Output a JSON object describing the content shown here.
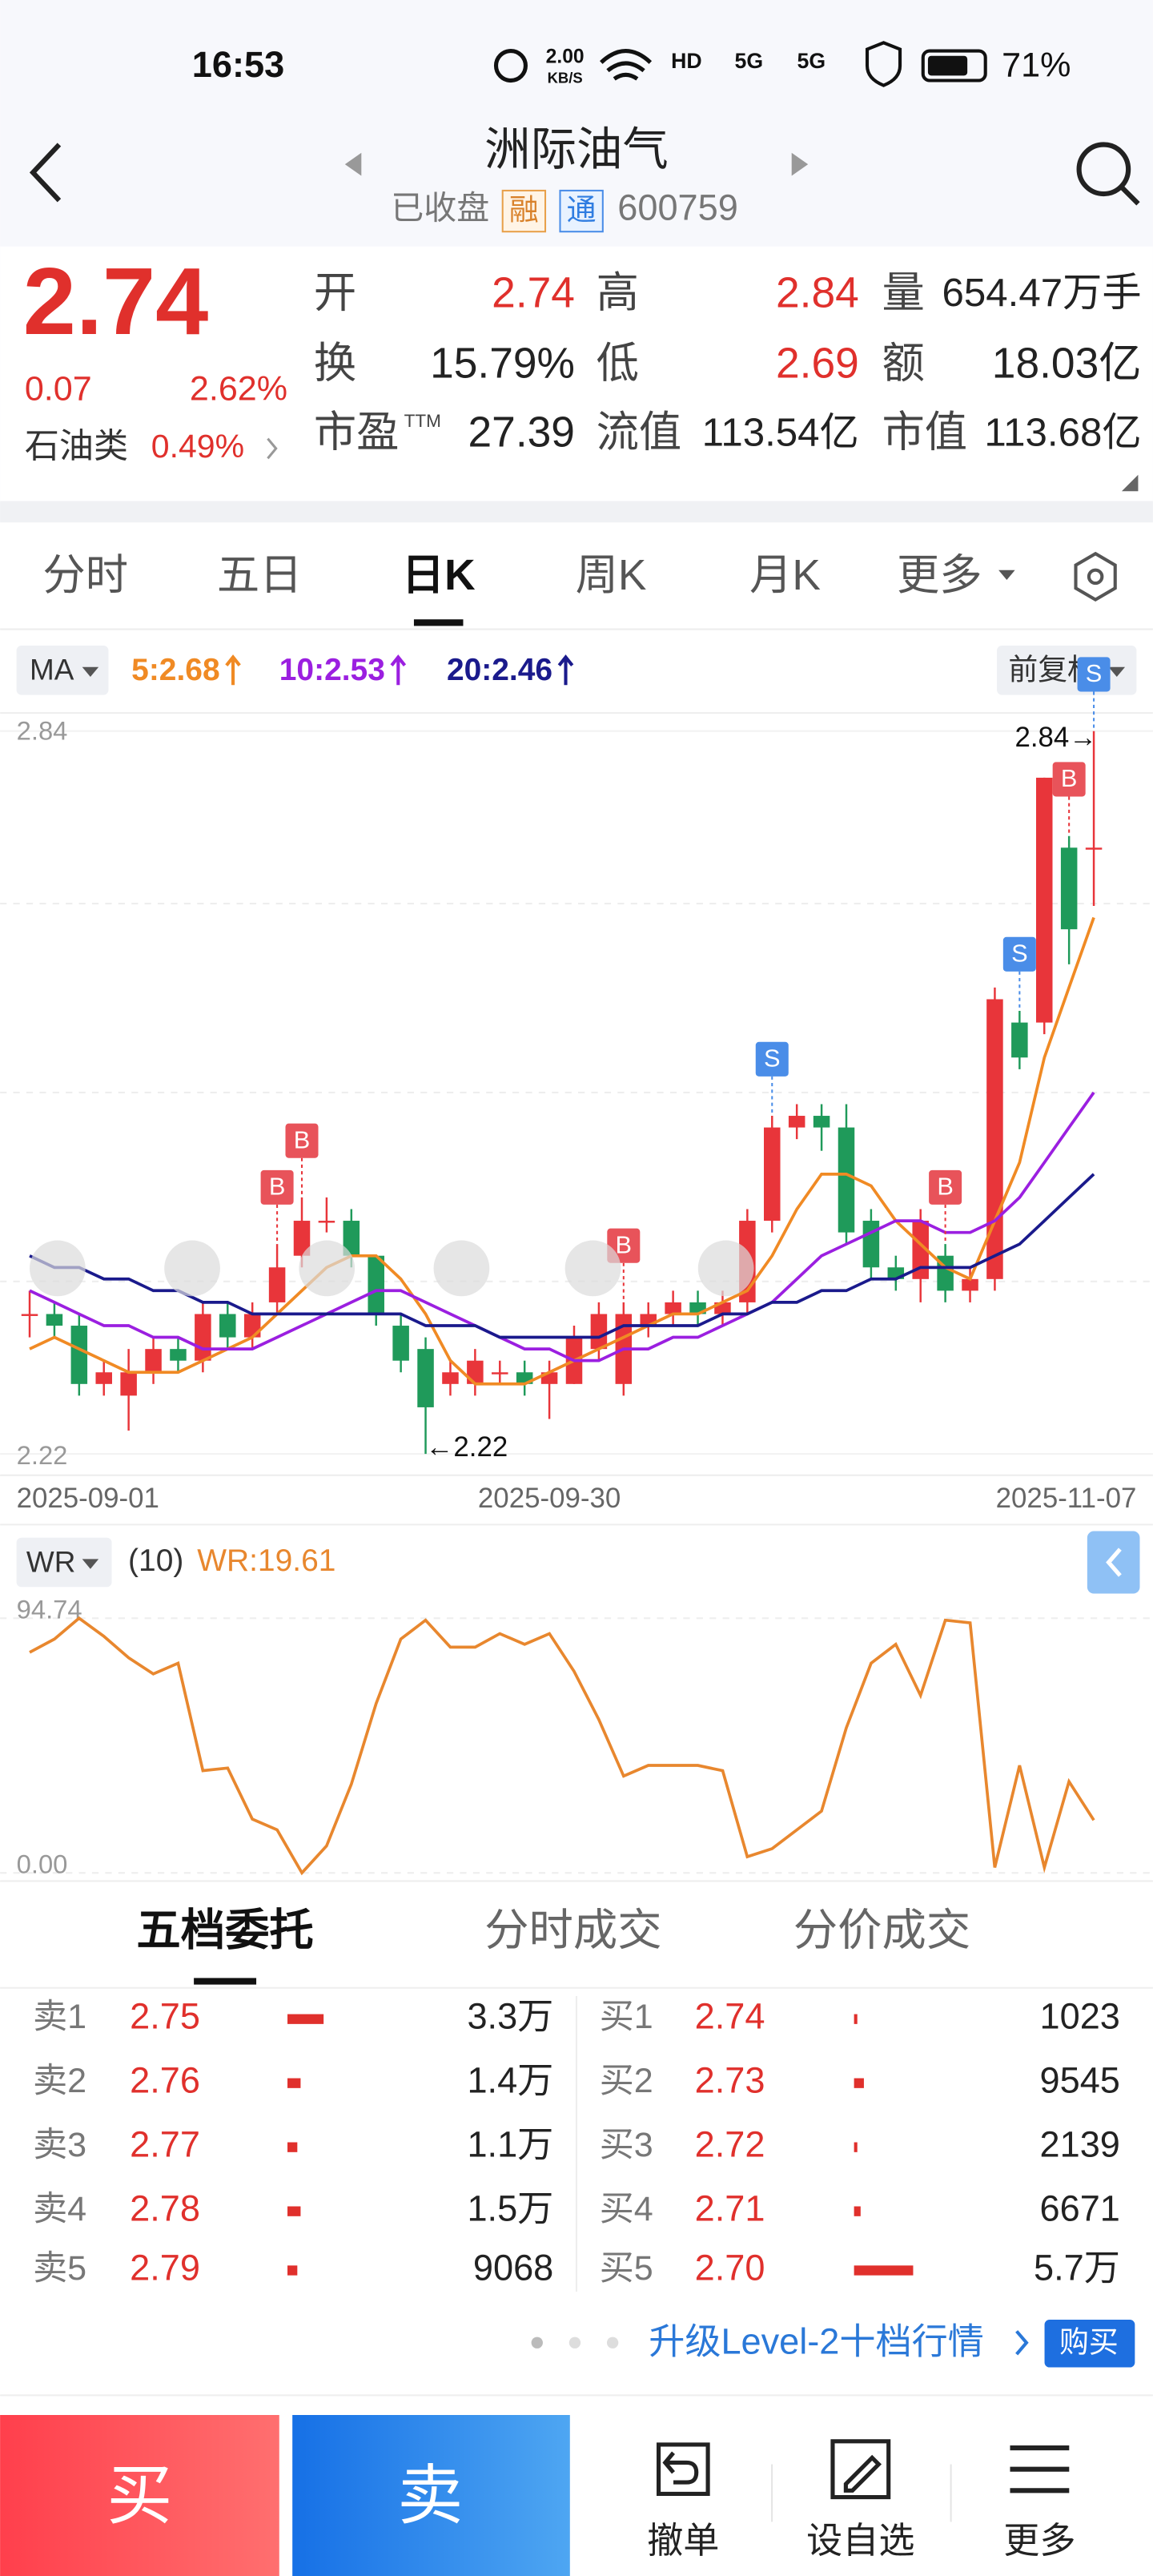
{
  "status_bar": {
    "time": "16:53",
    "speed": "2.00",
    "speed_unit": "KB/S",
    "network": [
      "HD",
      "5G",
      "5G"
    ],
    "battery": "71%"
  },
  "header": {
    "title": "洲际油气",
    "status": "已收盘",
    "tag1": "融",
    "tag2": "通",
    "code": "600759"
  },
  "quote": {
    "price": "2.74",
    "change": "0.07",
    "change_pct": "2.62%",
    "sector": "石油类",
    "sector_pct": "0.49%",
    "fields": [
      {
        "label": "开",
        "value": "2.74",
        "color": "#e0302c"
      },
      {
        "label": "高",
        "value": "2.84",
        "color": "#e0302c"
      },
      {
        "label": "量",
        "value": "654.47万手",
        "color": "#222222"
      },
      {
        "label": "换",
        "value": "15.79%",
        "color": "#222222"
      },
      {
        "label": "低",
        "value": "2.69",
        "color": "#e0302c"
      },
      {
        "label": "额",
        "value": "18.03亿",
        "color": "#222222"
      },
      {
        "label": "市盈",
        "sup": "TTM",
        "value": "27.39",
        "color": "#222222"
      },
      {
        "label": "流值",
        "value": "113.54亿",
        "color": "#222222"
      },
      {
        "label": "市值",
        "value": "113.68亿",
        "color": "#222222"
      }
    ]
  },
  "tabs": {
    "items": [
      "分时",
      "五日",
      "日K",
      "周K",
      "月K",
      "更多"
    ],
    "active": 2
  },
  "chart_data": [
    {
      "type": "candlestick",
      "indicator": "MA",
      "adjust": "前复权",
      "x": [
        "2025-09-01",
        null,
        null,
        null,
        null,
        null,
        null,
        null,
        null,
        null,
        null,
        null,
        null,
        null,
        null,
        null,
        null,
        null,
        null,
        null,
        null,
        "2025-09-30",
        null,
        null,
        null,
        null,
        null,
        null,
        null,
        null,
        null,
        null,
        null,
        null,
        null,
        null,
        null,
        null,
        null,
        null,
        null,
        null,
        null,
        "2025-11-07"
      ],
      "open": [
        2.34,
        2.34,
        2.33,
        2.28,
        2.27,
        2.29,
        2.31,
        2.3,
        2.34,
        2.32,
        2.35,
        2.39,
        2.42,
        2.42,
        2.39,
        2.33,
        2.31,
        2.28,
        2.28,
        2.29,
        2.29,
        2.28,
        2.28,
        2.31,
        2.28,
        2.33,
        2.34,
        2.35,
        2.34,
        2.35,
        2.42,
        2.5,
        2.51,
        2.5,
        2.42,
        2.38,
        2.37,
        2.39,
        2.36,
        2.37,
        2.59,
        2.59,
        2.74,
        2.74
      ],
      "high": [
        2.36,
        2.35,
        2.34,
        2.3,
        2.31,
        2.32,
        2.32,
        2.35,
        2.35,
        2.35,
        2.4,
        2.44,
        2.44,
        2.43,
        2.39,
        2.34,
        2.32,
        2.3,
        2.31,
        2.3,
        2.3,
        2.3,
        2.33,
        2.35,
        2.35,
        2.35,
        2.36,
        2.36,
        2.36,
        2.43,
        2.51,
        2.52,
        2.52,
        2.52,
        2.43,
        2.39,
        2.43,
        2.4,
        2.38,
        2.62,
        2.6,
        2.8,
        2.75,
        2.84
      ],
      "low": [
        2.32,
        2.32,
        2.27,
        2.27,
        2.24,
        2.28,
        2.29,
        2.29,
        2.31,
        2.31,
        2.34,
        2.38,
        2.41,
        2.38,
        2.33,
        2.29,
        2.22,
        2.27,
        2.27,
        2.28,
        2.27,
        2.25,
        2.28,
        2.3,
        2.27,
        2.32,
        2.33,
        2.33,
        2.33,
        2.34,
        2.41,
        2.49,
        2.48,
        2.4,
        2.37,
        2.36,
        2.35,
        2.35,
        2.35,
        2.36,
        2.55,
        2.58,
        2.64,
        2.69
      ],
      "close": [
        2.34,
        2.33,
        2.28,
        2.29,
        2.29,
        2.31,
        2.3,
        2.34,
        2.32,
        2.34,
        2.38,
        2.42,
        2.42,
        2.39,
        2.34,
        2.3,
        2.26,
        2.29,
        2.3,
        2.29,
        2.28,
        2.29,
        2.32,
        2.34,
        2.34,
        2.34,
        2.35,
        2.34,
        2.35,
        2.42,
        2.5,
        2.51,
        2.5,
        2.41,
        2.38,
        2.37,
        2.42,
        2.36,
        2.37,
        2.61,
        2.56,
        2.8,
        2.67,
        2.74
      ],
      "up_color": "#e8353a",
      "down_color": "#1f9a5a",
      "series": [
        {
          "name": "5:2.68",
          "color": "#f08a24",
          "values": [
            2.31,
            2.32,
            2.31,
            2.3,
            2.29,
            2.29,
            2.29,
            2.3,
            2.31,
            2.32,
            2.34,
            2.36,
            2.38,
            2.39,
            2.39,
            2.37,
            2.34,
            2.3,
            2.28,
            2.28,
            2.28,
            2.29,
            2.3,
            2.31,
            2.32,
            2.33,
            2.34,
            2.34,
            2.35,
            2.36,
            2.39,
            2.43,
            2.46,
            2.46,
            2.45,
            2.42,
            2.4,
            2.38,
            2.37,
            2.42,
            2.47,
            2.56,
            2.62,
            2.68
          ]
        },
        {
          "name": "10:2.53",
          "color": "#9b1fe0",
          "values": [
            2.36,
            2.35,
            2.34,
            2.33,
            2.33,
            2.32,
            2.32,
            2.31,
            2.31,
            2.31,
            2.32,
            2.33,
            2.34,
            2.35,
            2.36,
            2.36,
            2.35,
            2.34,
            2.33,
            2.32,
            2.31,
            2.31,
            2.3,
            2.3,
            2.31,
            2.31,
            2.32,
            2.32,
            2.33,
            2.34,
            2.35,
            2.37,
            2.39,
            2.4,
            2.41,
            2.42,
            2.42,
            2.41,
            2.41,
            2.42,
            2.44,
            2.47,
            2.5,
            2.53
          ]
        },
        {
          "name": "20:2.46",
          "color": "#1a1a8c",
          "values": [
            2.39,
            2.38,
            2.38,
            2.37,
            2.37,
            2.36,
            2.36,
            2.35,
            2.35,
            2.34,
            2.34,
            2.34,
            2.34,
            2.34,
            2.34,
            2.34,
            2.33,
            2.33,
            2.33,
            2.32,
            2.32,
            2.32,
            2.32,
            2.32,
            2.33,
            2.33,
            2.33,
            2.33,
            2.34,
            2.34,
            2.35,
            2.35,
            2.36,
            2.36,
            2.37,
            2.37,
            2.38,
            2.38,
            2.38,
            2.39,
            2.4,
            2.42,
            2.44,
            2.46
          ]
        }
      ],
      "ylim": [
        2.22,
        2.84
      ],
      "yticks": [
        2.84,
        2.22
      ],
      "high_label": "2.84→",
      "low_label": "←2.22",
      "signals": [
        "B",
        "B",
        "B",
        "S",
        "B",
        "S",
        "B",
        "S"
      ]
    },
    {
      "type": "line",
      "title": "WR",
      "param": "(10)",
      "series": [
        {
          "name": "WR:19.61",
          "color": "#e8872e",
          "values": [
            82,
            87,
            94.74,
            88,
            80,
            74,
            78,
            38,
            39,
            20,
            16,
            0,
            10,
            33,
            63,
            87,
            94,
            84,
            84,
            89,
            85,
            89,
            75,
            57,
            36,
            40,
            40,
            40,
            38,
            6,
            9,
            16,
            23,
            54,
            78,
            85,
            66,
            94,
            93,
            2,
            40,
            2,
            34,
            19.61
          ]
        }
      ],
      "ylim": [
        0,
        94.74
      ],
      "yticks": [
        94.74,
        {
          "value": 0,
          "label": "0.00"
        }
      ]
    }
  ],
  "order_book": {
    "tabs": [
      "五档委托",
      "分时成交",
      "分价成交"
    ],
    "active": 0,
    "sell": [
      [
        "卖1",
        "2.75",
        "3.3万"
      ],
      [
        "卖2",
        "2.76",
        "1.4万"
      ],
      [
        "卖3",
        "2.77",
        "1.1万"
      ],
      [
        "卖4",
        "2.78",
        "1.5万"
      ],
      [
        "卖5",
        "2.79",
        "9068"
      ]
    ],
    "buy": [
      [
        "买1",
        "2.74",
        "1023"
      ],
      [
        "买2",
        "2.73",
        "9545"
      ],
      [
        "买3",
        "2.72",
        "2139"
      ],
      [
        "买4",
        "2.71",
        "6671"
      ],
      [
        "买5",
        "2.70",
        "5.7万"
      ]
    ]
  },
  "promo": {
    "text": "升级Level-2十档行情",
    "button": "购买"
  },
  "bottom_bar": {
    "buy": "买",
    "sell": "卖",
    "actions": [
      "撤单",
      "设自选",
      "更多"
    ]
  }
}
